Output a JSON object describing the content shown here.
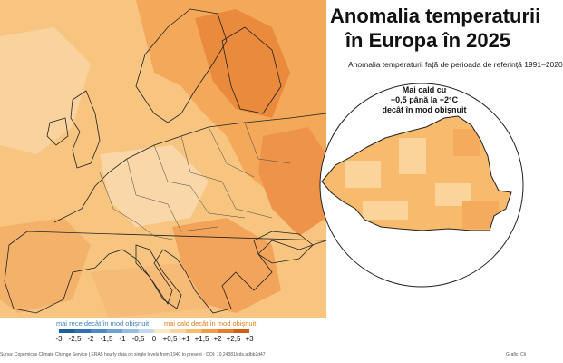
{
  "title_line1": "Anomalia temperaturii",
  "title_line2": "în Europa în 2025",
  "subtitle": "Anomalia temperaturii față de perioada de referință 1991–2020",
  "inset_annotation": [
    "Mai cald cu",
    "+0,5 până la +2°C",
    "decât în mod obișnuit"
  ],
  "legend": {
    "cold_label": "mai rece decât în mod obișnuit",
    "warm_label": "mai cald decât în mod obișnuit",
    "ticks": [
      "-3",
      "-2,5",
      "-2",
      "-1,5",
      "-1",
      "-0,5",
      "0",
      "+0,5",
      "+1",
      "+1,5",
      "+2",
      "+2,5",
      "+3"
    ],
    "cold_colors": [
      "#1c5e9e",
      "#2f72b4",
      "#4c89c6",
      "#6fa2d3",
      "#96bde0",
      "#c3d9ee"
    ],
    "warm_colors": [
      "#fde8c6",
      "#fbd49c",
      "#f8bb6e",
      "#f19d48",
      "#e57d2a",
      "#cf5f18"
    ]
  },
  "source": "Sursa: Copernicus Climate Change Service | ERA5 hourly data on single levels from 1940 to present · DOI: 10.24381/cds.adbb2d47",
  "credit": "Grafic: Cli"
}
